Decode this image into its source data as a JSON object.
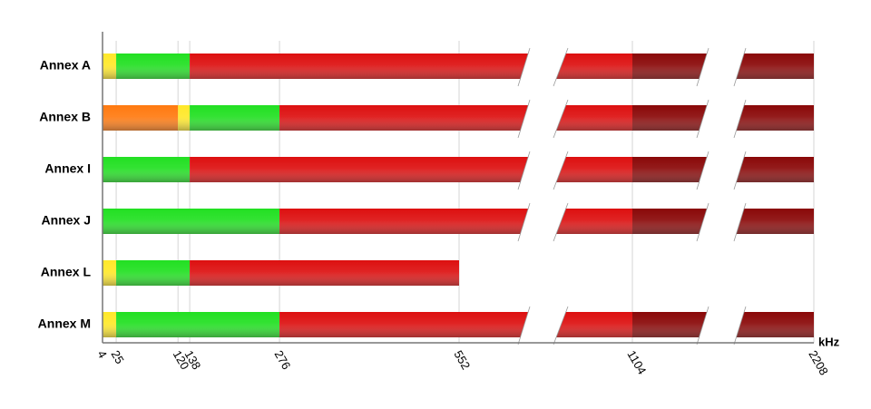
{
  "chart_data": {
    "type": "range-bar",
    "categories": [
      "Annex A",
      "Annex B",
      "Annex I",
      "Annex J",
      "Annex L",
      "Annex M"
    ],
    "segments": [
      [
        {
          "from": 4,
          "to": 25,
          "color": "#ffe82a"
        },
        {
          "from": 25,
          "to": 138,
          "color": "#22e022"
        },
        {
          "from": 138,
          "to": 1104,
          "color": "#dd1010"
        },
        {
          "from": 1104,
          "to": 2208,
          "color": "#8a0808"
        }
      ],
      [
        {
          "from": 4,
          "to": 120,
          "color": "#ff7a10"
        },
        {
          "from": 120,
          "to": 138,
          "color": "#ffe82a"
        },
        {
          "from": 138,
          "to": 276,
          "color": "#22e022"
        },
        {
          "from": 276,
          "to": 1104,
          "color": "#dd1010"
        },
        {
          "from": 1104,
          "to": 2208,
          "color": "#8a0808"
        }
      ],
      [
        {
          "from": 4,
          "to": 138,
          "color": "#22e022"
        },
        {
          "from": 138,
          "to": 1104,
          "color": "#dd1010"
        },
        {
          "from": 1104,
          "to": 2208,
          "color": "#8a0808"
        }
      ],
      [
        {
          "from": 4,
          "to": 276,
          "color": "#22e022"
        },
        {
          "from": 276,
          "to": 1104,
          "color": "#dd1010"
        },
        {
          "from": 1104,
          "to": 2208,
          "color": "#8a0808"
        }
      ],
      [
        {
          "from": 4,
          "to": 25,
          "color": "#ffe82a"
        },
        {
          "from": 25,
          "to": 138,
          "color": "#22e022"
        },
        {
          "from": 138,
          "to": 552,
          "color": "#dd1010"
        }
      ],
      [
        {
          "from": 4,
          "to": 25,
          "color": "#ffe82a"
        },
        {
          "from": 25,
          "to": 276,
          "color": "#22e022"
        },
        {
          "from": 276,
          "to": 1104,
          "color": "#dd1010"
        },
        {
          "from": 1104,
          "to": 2208,
          "color": "#8a0808"
        }
      ]
    ],
    "xlabel": "kHz",
    "xlim": [
      4,
      2208
    ],
    "xticks": [
      4,
      25,
      120,
      138,
      276,
      552,
      1104,
      2208
    ],
    "grid": true
  }
}
